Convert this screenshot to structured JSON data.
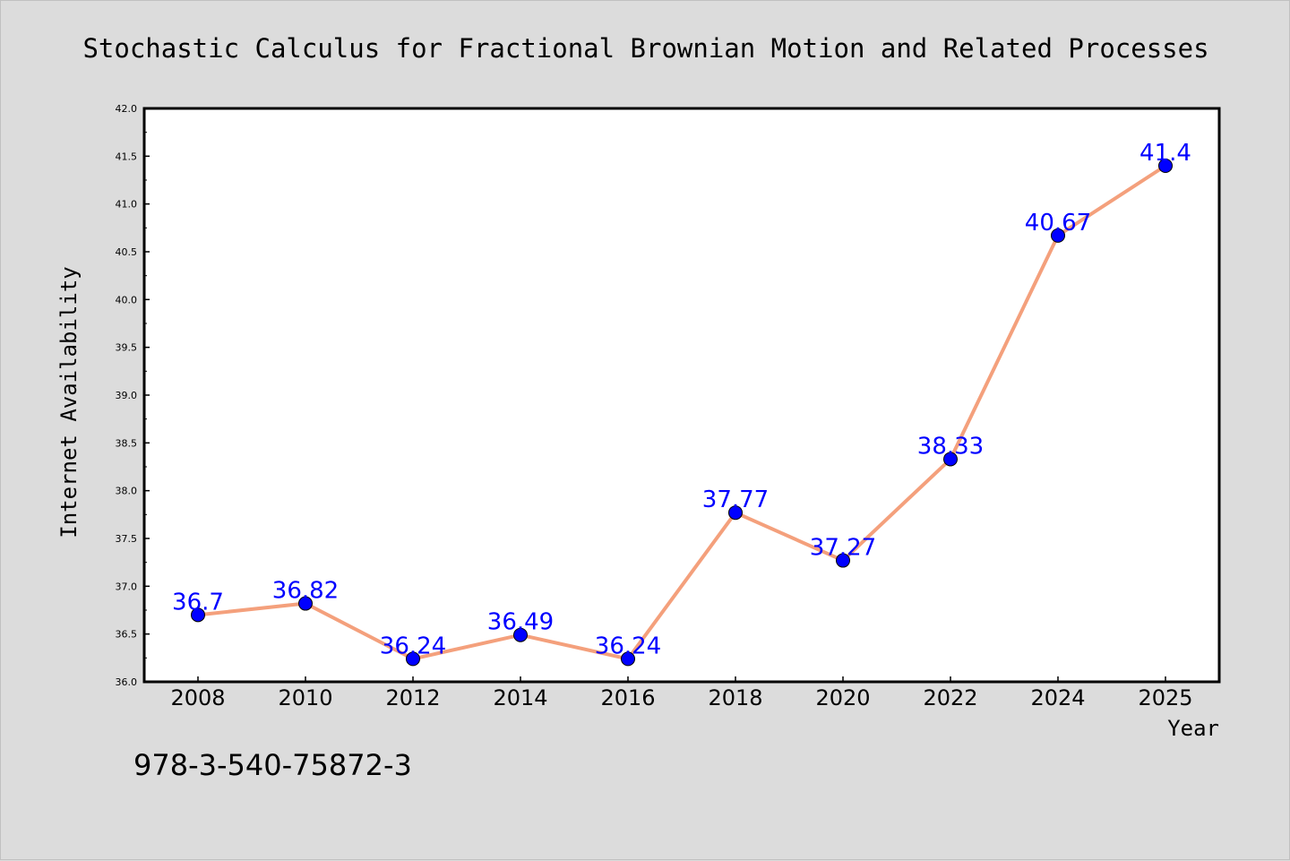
{
  "chart_data": {
    "type": "line",
    "title": "Stochastic Calculus for Fractional Brownian Motion and Related Processes",
    "xlabel": "Year",
    "ylabel": "Internet Availability",
    "categories": [
      "2008",
      "2010",
      "2012",
      "2014",
      "2016",
      "2018",
      "2020",
      "2022",
      "2024",
      "2025"
    ],
    "series": [
      {
        "values": [
          36.7,
          36.82,
          36.24,
          36.49,
          36.24,
          37.77,
          37.27,
          38.33,
          40.67,
          41.4
        ],
        "data_labels": [
          "36.7",
          "36.82",
          "36.24",
          "36.49",
          "36.24",
          "37.77",
          "37.27",
          "38.33",
          "40.67",
          "41.4"
        ]
      }
    ],
    "ylim": [
      36.0,
      42.0
    ],
    "yticks": [
      "36.0",
      "36.5",
      "37.0",
      "37.5",
      "38.0",
      "38.5",
      "39.0",
      "39.5",
      "40.0",
      "40.5",
      "41.0",
      "41.5",
      "42.0"
    ],
    "grid": false,
    "legend": "none",
    "annotation": "978-3-540-75872-3",
    "colors": {
      "line": "#f4a07c",
      "marker": "#0000ff",
      "label": "#0000ff",
      "background": "#dcdcdc",
      "plot_area": "#ffffff"
    }
  }
}
